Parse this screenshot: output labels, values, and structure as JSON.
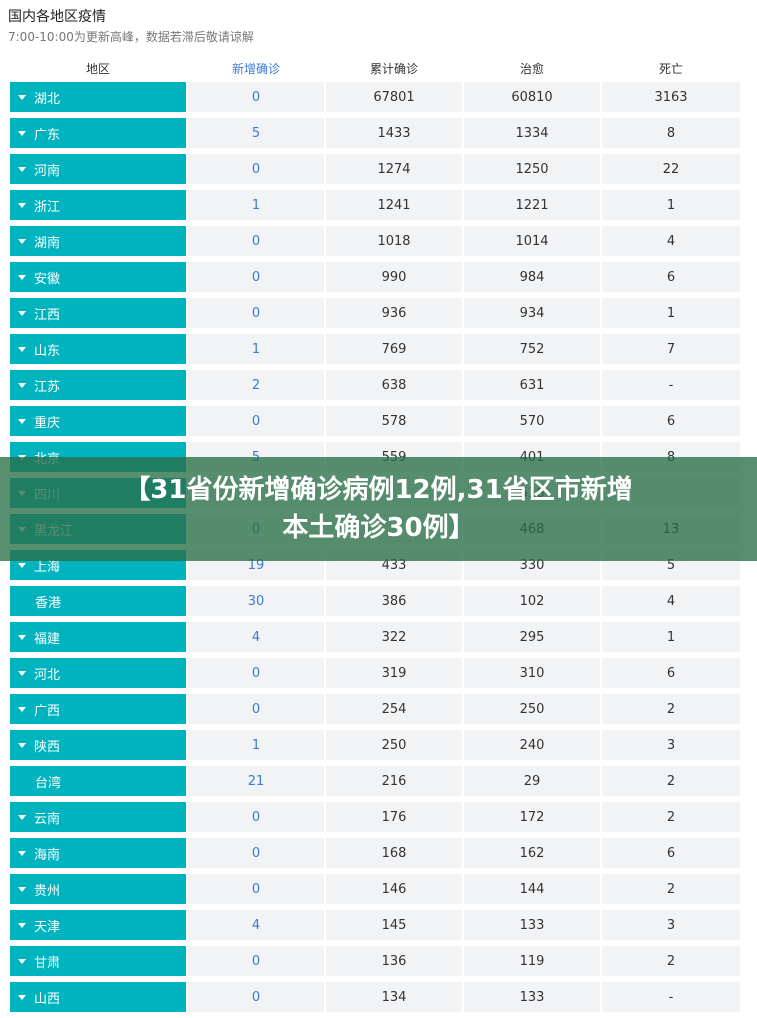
{
  "page": {
    "title": "国内各地区疫情",
    "subtitle": "7:00-10:00为更新高峰，数据若滞后敬请谅解"
  },
  "table": {
    "headers": [
      "地区",
      "新增确诊",
      "累计确诊",
      "治愈",
      "死亡"
    ],
    "rows": [
      {
        "region": "湖北",
        "new": "0",
        "total": "67801",
        "cured": "60810",
        "dead": "3163",
        "expandable": true
      },
      {
        "region": "广东",
        "new": "5",
        "total": "1433",
        "cured": "1334",
        "dead": "8",
        "expandable": true
      },
      {
        "region": "河南",
        "new": "0",
        "total": "1274",
        "cured": "1250",
        "dead": "22",
        "expandable": true
      },
      {
        "region": "浙江",
        "new": "1",
        "total": "1241",
        "cured": "1221",
        "dead": "1",
        "expandable": true
      },
      {
        "region": "湖南",
        "new": "0",
        "total": "1018",
        "cured": "1014",
        "dead": "4",
        "expandable": true
      },
      {
        "region": "安徽",
        "new": "0",
        "total": "990",
        "cured": "984",
        "dead": "6",
        "expandable": true
      },
      {
        "region": "江西",
        "new": "0",
        "total": "936",
        "cured": "934",
        "dead": "1",
        "expandable": true
      },
      {
        "region": "山东",
        "new": "1",
        "total": "769",
        "cured": "752",
        "dead": "7",
        "expandable": true
      },
      {
        "region": "江苏",
        "new": "2",
        "total": "638",
        "cured": "631",
        "dead": "-",
        "expandable": true
      },
      {
        "region": "重庆",
        "new": "0",
        "total": "578",
        "cured": "570",
        "dead": "6",
        "expandable": true
      },
      {
        "region": "北京",
        "new": "5",
        "total": "559",
        "cured": "401",
        "dead": "8",
        "expandable": true
      },
      {
        "region": "四川",
        "new": "",
        "total": "",
        "cured": "516",
        "dead": "",
        "expandable": true
      },
      {
        "region": "黑龙江",
        "new": "0",
        "total": "",
        "cured": "468",
        "dead": "13",
        "expandable": true
      },
      {
        "region": "上海",
        "new": "19",
        "total": "433",
        "cured": "330",
        "dead": "5",
        "expandable": true
      },
      {
        "region": "香港",
        "new": "30",
        "total": "386",
        "cured": "102",
        "dead": "4",
        "expandable": false
      },
      {
        "region": "福建",
        "new": "4",
        "total": "322",
        "cured": "295",
        "dead": "1",
        "expandable": true
      },
      {
        "region": "河北",
        "new": "0",
        "total": "319",
        "cured": "310",
        "dead": "6",
        "expandable": true
      },
      {
        "region": "广西",
        "new": "0",
        "total": "254",
        "cured": "250",
        "dead": "2",
        "expandable": true
      },
      {
        "region": "陕西",
        "new": "1",
        "total": "250",
        "cured": "240",
        "dead": "3",
        "expandable": true
      },
      {
        "region": "台湾",
        "new": "21",
        "total": "216",
        "cured": "29",
        "dead": "2",
        "expandable": false
      },
      {
        "region": "云南",
        "new": "0",
        "total": "176",
        "cured": "172",
        "dead": "2",
        "expandable": true
      },
      {
        "region": "海南",
        "new": "0",
        "total": "168",
        "cured": "162",
        "dead": "6",
        "expandable": true
      },
      {
        "region": "贵州",
        "new": "0",
        "total": "146",
        "cured": "144",
        "dead": "2",
        "expandable": true
      },
      {
        "region": "天津",
        "new": "4",
        "total": "145",
        "cured": "133",
        "dead": "3",
        "expandable": true
      },
      {
        "region": "甘肃",
        "new": "0",
        "total": "136",
        "cured": "119",
        "dead": "2",
        "expandable": true
      },
      {
        "region": "山西",
        "new": "0",
        "total": "134",
        "cured": "133",
        "dead": "-",
        "expandable": true
      }
    ]
  },
  "banner": {
    "line1": "【31省份新增确诊病例12例,31省区市新增",
    "line2": "本土确诊30例】"
  },
  "colors": {
    "region_bg": "#00b4bf",
    "cell_bg": "#f2f3f5",
    "new_text": "#3a7bd5",
    "banner_bg": "#286e46"
  }
}
